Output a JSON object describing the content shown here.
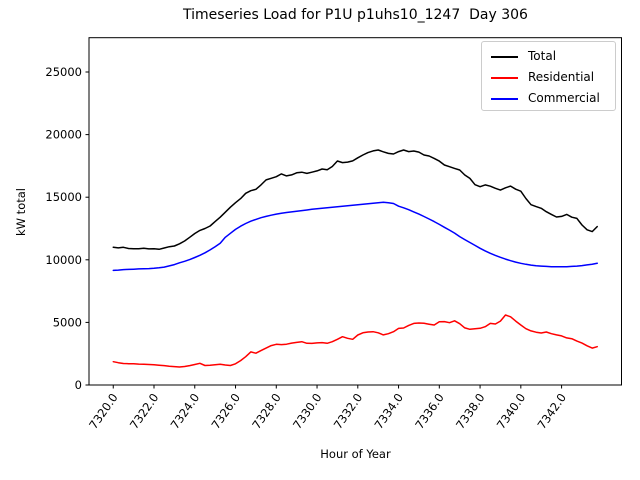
{
  "figure": {
    "title": "Timeseries Load for P1U p1uhs10_1247  Day 306",
    "xlabel": "Hour of Year",
    "ylabel": "kW total"
  },
  "chart_data": {
    "type": "line",
    "title": "Timeseries Load for P1U p1uhs10_1247  Day 306",
    "xlabel": "Hour of Year",
    "ylabel": "kW total",
    "grid": false,
    "legend_position": "upper right",
    "xlim": [
      7318.81,
      7344.94
    ],
    "ylim": [
      0,
      27740
    ],
    "xticks": [
      7320,
      7322,
      7324,
      7326,
      7328,
      7330,
      7332,
      7334,
      7336,
      7338,
      7340,
      7342
    ],
    "xtick_labels": [
      "7320.0",
      "7322.0",
      "7324.0",
      "7326.0",
      "7328.0",
      "7330.0",
      "7332.0",
      "7334.0",
      "7336.0",
      "7338.0",
      "7340.0",
      "7342.0"
    ],
    "xtick_rotation": -55,
    "yticks": [
      0,
      5000,
      10000,
      15000,
      20000,
      25000
    ],
    "ytick_labels": [
      "0",
      "5000",
      "10000",
      "15000",
      "20000",
      "25000"
    ],
    "line_width": 1.5,
    "x": [
      7320.0,
      7320.25,
      7320.5,
      7320.75,
      7321.0,
      7321.25,
      7321.5,
      7321.75,
      7322.0,
      7322.25,
      7322.5,
      7322.75,
      7323.0,
      7323.25,
      7323.5,
      7323.75,
      7324.0,
      7324.25,
      7324.5,
      7324.75,
      7325.0,
      7325.25,
      7325.5,
      7325.75,
      7326.0,
      7326.25,
      7326.5,
      7326.75,
      7327.0,
      7327.25,
      7327.5,
      7327.75,
      7328.0,
      7328.25,
      7328.5,
      7328.75,
      7329.0,
      7329.25,
      7329.5,
      7329.75,
      7330.0,
      7330.25,
      7330.5,
      7330.75,
      7331.0,
      7331.25,
      7331.5,
      7331.75,
      7332.0,
      7332.25,
      7332.5,
      7332.75,
      7333.0,
      7333.25,
      7333.5,
      7333.75,
      7334.0,
      7334.25,
      7334.5,
      7334.75,
      7335.0,
      7335.25,
      7335.5,
      7335.75,
      7336.0,
      7336.25,
      7336.5,
      7336.75,
      7337.0,
      7337.25,
      7337.5,
      7337.75,
      7338.0,
      7338.25,
      7338.5,
      7338.75,
      7339.0,
      7339.25,
      7339.5,
      7339.75,
      7340.0,
      7340.25,
      7340.5,
      7340.75,
      7341.0,
      7341.25,
      7341.5,
      7341.75,
      7342.0,
      7342.25,
      7342.5,
      7342.75,
      7343.0,
      7343.25,
      7343.5,
      7343.75
    ],
    "series": [
      {
        "name": "Total",
        "color": "#000000",
        "values": [
          11000,
          10950,
          11000,
          10900,
          10890,
          10890,
          10920,
          10870,
          10890,
          10840,
          10940,
          11050,
          11100,
          11280,
          11500,
          11800,
          12100,
          12350,
          12500,
          12700,
          13050,
          13400,
          13800,
          14200,
          14560,
          14890,
          15310,
          15520,
          15630,
          15980,
          16380,
          16510,
          16640,
          16860,
          16700,
          16780,
          16950,
          17000,
          16900,
          17000,
          17100,
          17250,
          17200,
          17450,
          17890,
          17760,
          17800,
          17900,
          18150,
          18370,
          18560,
          18700,
          18770,
          18630,
          18500,
          18450,
          18640,
          18770,
          18640,
          18690,
          18600,
          18370,
          18290,
          18100,
          17880,
          17570,
          17440,
          17300,
          17170,
          16770,
          16500,
          16000,
          15840,
          15980,
          15880,
          15710,
          15570,
          15750,
          15890,
          15640,
          15480,
          14900,
          14400,
          14250,
          14110,
          13840,
          13630,
          13420,
          13470,
          13630,
          13400,
          13310,
          12780,
          12400,
          12250,
          12650
        ]
      },
      {
        "name": "Residential",
        "color": "#ff0000",
        "values": [
          1860,
          1780,
          1720,
          1700,
          1690,
          1670,
          1660,
          1640,
          1620,
          1580,
          1550,
          1500,
          1470,
          1440,
          1480,
          1550,
          1640,
          1730,
          1560,
          1580,
          1620,
          1650,
          1600,
          1560,
          1690,
          1950,
          2260,
          2640,
          2540,
          2750,
          2950,
          3150,
          3250,
          3230,
          3260,
          3350,
          3400,
          3460,
          3330,
          3320,
          3360,
          3390,
          3330,
          3460,
          3650,
          3860,
          3730,
          3650,
          3990,
          4170,
          4230,
          4260,
          4170,
          4000,
          4100,
          4260,
          4520,
          4550,
          4760,
          4920,
          4950,
          4930,
          4860,
          4790,
          5050,
          5060,
          4980,
          5130,
          4900,
          4560,
          4450,
          4500,
          4530,
          4660,
          4920,
          4870,
          5100,
          5590,
          5450,
          5100,
          4790,
          4500,
          4320,
          4220,
          4150,
          4230,
          4100,
          4000,
          3920,
          3760,
          3700,
          3510,
          3350,
          3130,
          2950,
          3060
        ]
      },
      {
        "name": "Commercial",
        "color": "#0000ff",
        "values": [
          9150,
          9180,
          9220,
          9230,
          9250,
          9270,
          9290,
          9300,
          9320,
          9360,
          9420,
          9510,
          9620,
          9760,
          9880,
          10020,
          10180,
          10360,
          10560,
          10790,
          11050,
          11330,
          11800,
          12120,
          12430,
          12680,
          12900,
          13080,
          13230,
          13360,
          13470,
          13560,
          13650,
          13720,
          13780,
          13830,
          13880,
          13930,
          13980,
          14030,
          14080,
          14120,
          14160,
          14200,
          14240,
          14280,
          14320,
          14360,
          14400,
          14440,
          14480,
          14520,
          14560,
          14590,
          14560,
          14500,
          14280,
          14150,
          14000,
          13830,
          13650,
          13460,
          13260,
          13050,
          12830,
          12600,
          12370,
          12130,
          11850,
          11610,
          11380,
          11150,
          10920,
          10710,
          10520,
          10350,
          10200,
          10060,
          9930,
          9820,
          9720,
          9640,
          9580,
          9530,
          9500,
          9470,
          9450,
          9440,
          9440,
          9450,
          9470,
          9500,
          9540,
          9590,
          9650,
          9720
        ]
      }
    ]
  }
}
